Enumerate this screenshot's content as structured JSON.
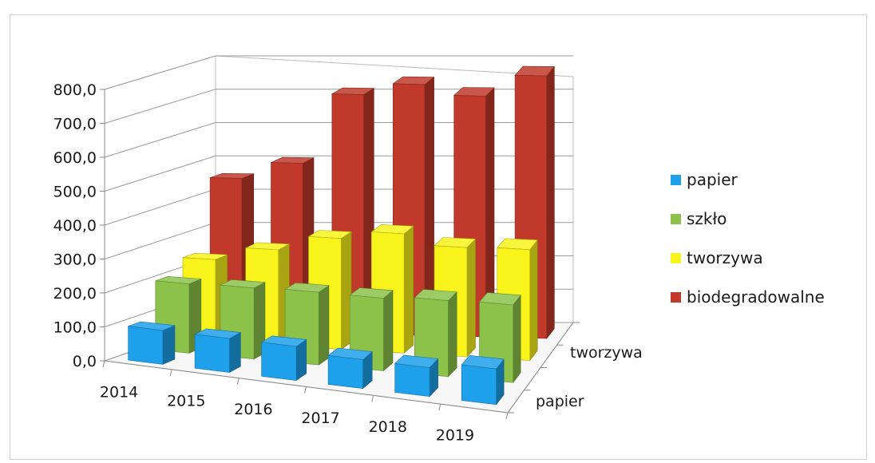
{
  "chart_data": {
    "type": "bar",
    "subtype": "3d-column",
    "categories": [
      "2014",
      "2015",
      "2016",
      "2017",
      "2018",
      "2019"
    ],
    "series": [
      {
        "name": "papier",
        "color": "#1ea0ea",
        "values": [
          100,
          100,
          100,
          85,
          85,
          105
        ]
      },
      {
        "name": "szkło",
        "color": "#8cc24a",
        "values": [
          205,
          210,
          215,
          215,
          225,
          230
        ]
      },
      {
        "name": "tworzywa",
        "color": "#f8f31a",
        "values": [
          245,
          285,
          330,
          355,
          325,
          330
        ]
      },
      {
        "name": "biodegradowalne",
        "color": "#c0392b",
        "values": [
          455,
          505,
          715,
          750,
          720,
          785
        ]
      }
    ],
    "y_ticks": [
      "0,0",
      "100,0",
      "200,0",
      "300,0",
      "400,0",
      "500,0",
      "600,0",
      "700,0",
      "800,0"
    ],
    "ylim": [
      0,
      800
    ],
    "depth_labels": [
      "tworzywa",
      "papier"
    ],
    "grid": true,
    "legend_position": "right"
  }
}
